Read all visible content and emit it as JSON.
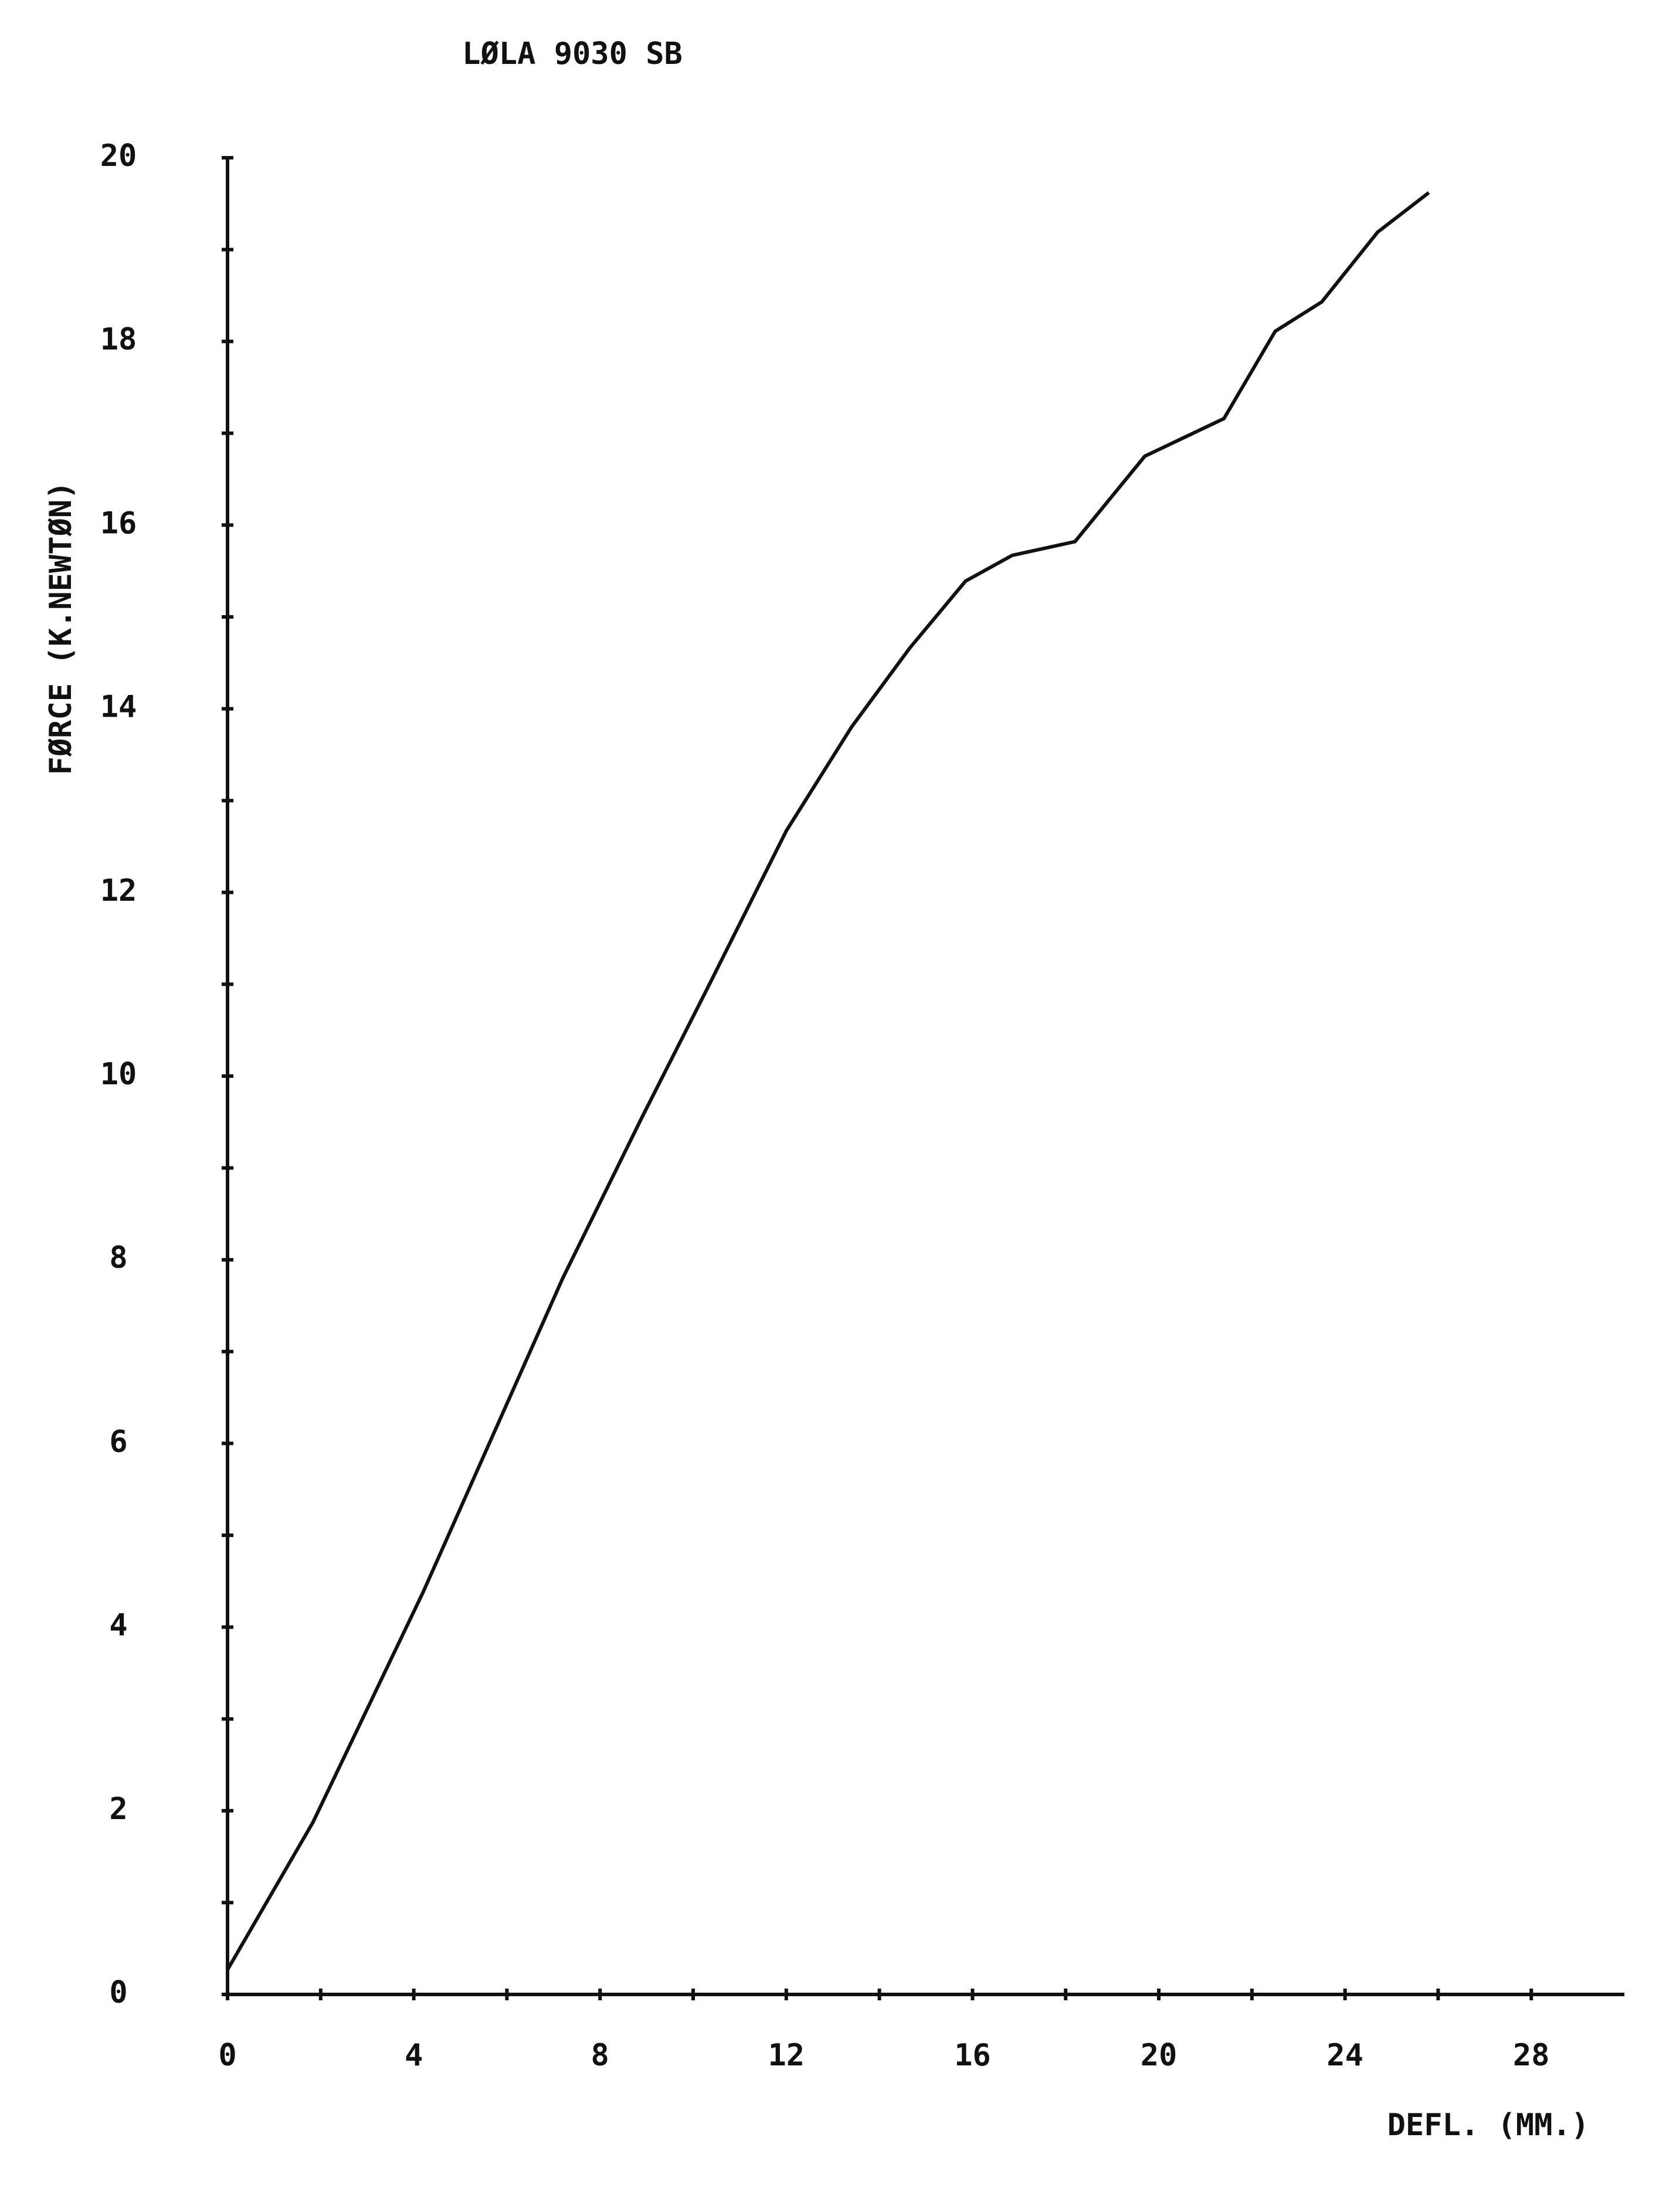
{
  "chart_data": {
    "type": "line",
    "title": "LØLA 9030 SB",
    "x_label": "DEFL. (MM.)",
    "y_label": "FØRCE (K.NEWTØN)",
    "x": [
      0,
      1.83,
      4.2,
      7.2,
      8.9,
      10.3,
      12.0,
      13.4,
      14.65,
      15.85,
      16.85,
      18.2,
      19.7,
      21.4,
      22.5,
      23.5,
      24.7,
      25.8
    ],
    "series": [
      {
        "name": "LØLA 9030 SB",
        "color": "#111111",
        "values": [
          0.27,
          1.87,
          4.38,
          7.8,
          9.55,
          10.95,
          12.67,
          13.8,
          14.66,
          15.39,
          15.67,
          15.82,
          16.75,
          17.16,
          18.11,
          18.43,
          19.19,
          19.62
        ]
      }
    ],
    "xlim": [
      0,
      30
    ],
    "ylim": [
      0,
      20
    ],
    "xticks": [
      0,
      4,
      8,
      12,
      16,
      20,
      24,
      28
    ],
    "yticks": [
      0,
      2,
      4,
      6,
      8,
      10,
      12,
      14,
      16,
      18,
      20
    ],
    "grid": false
  }
}
